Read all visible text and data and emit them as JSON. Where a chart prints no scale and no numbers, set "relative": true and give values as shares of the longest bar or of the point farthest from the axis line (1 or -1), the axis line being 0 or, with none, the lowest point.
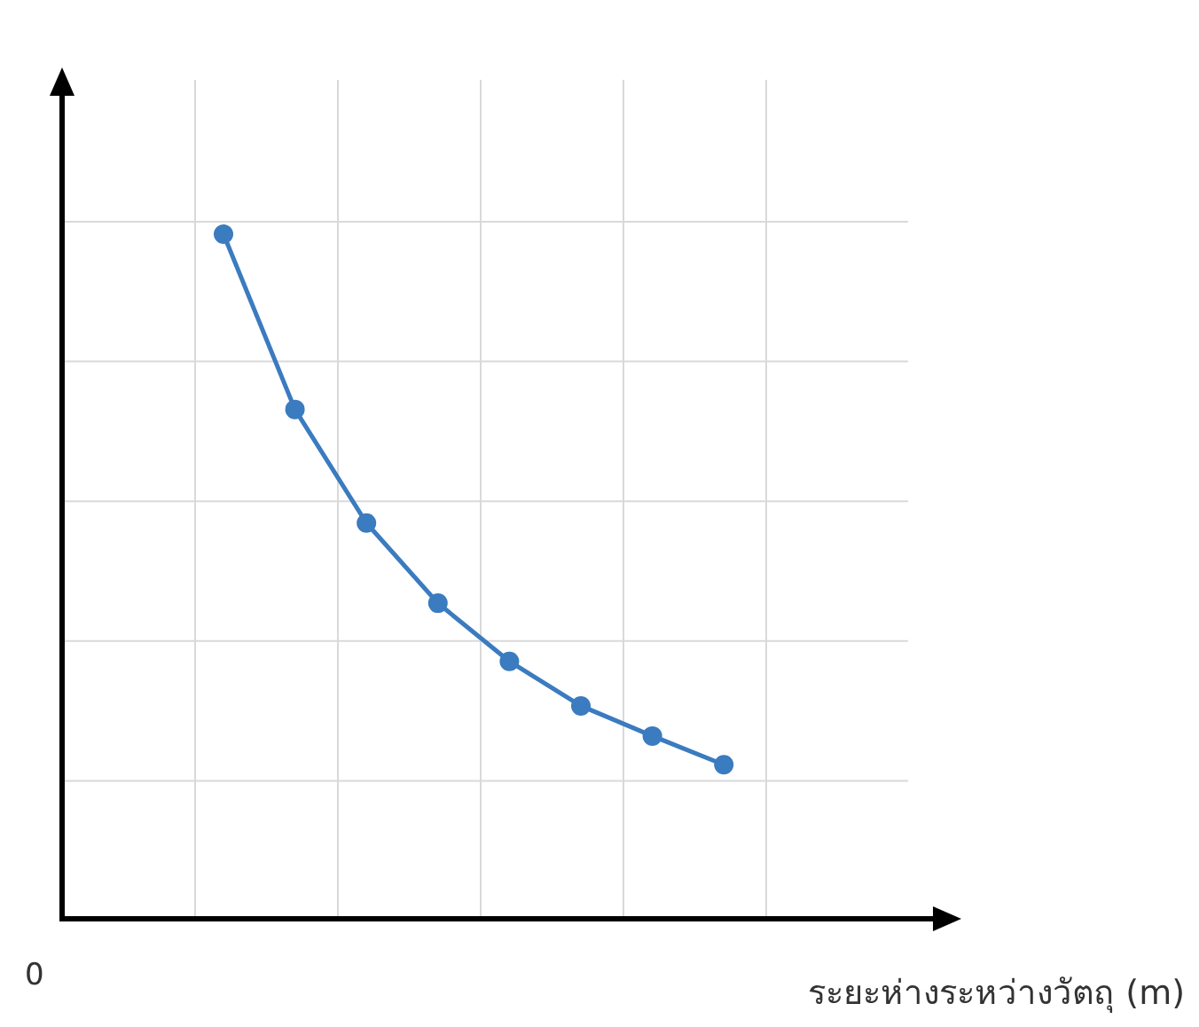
{
  "chart_data": {
    "type": "line",
    "relative": true,
    "xlabel": "ระยะห่างระหว่างวัตถุ (m)",
    "categories": [
      null,
      null,
      null,
      null,
      null,
      null,
      null,
      null
    ],
    "series": [
      {
        "color": "#3b7bbf",
        "values": [
          1,
          0.744,
          0.578,
          0.461,
          0.376,
          0.311,
          0.267,
          0.225
        ]
      }
    ],
    "annotations": [
      "0"
    ],
    "grid": true,
    "marker": "circle",
    "line_style": "solid"
  }
}
